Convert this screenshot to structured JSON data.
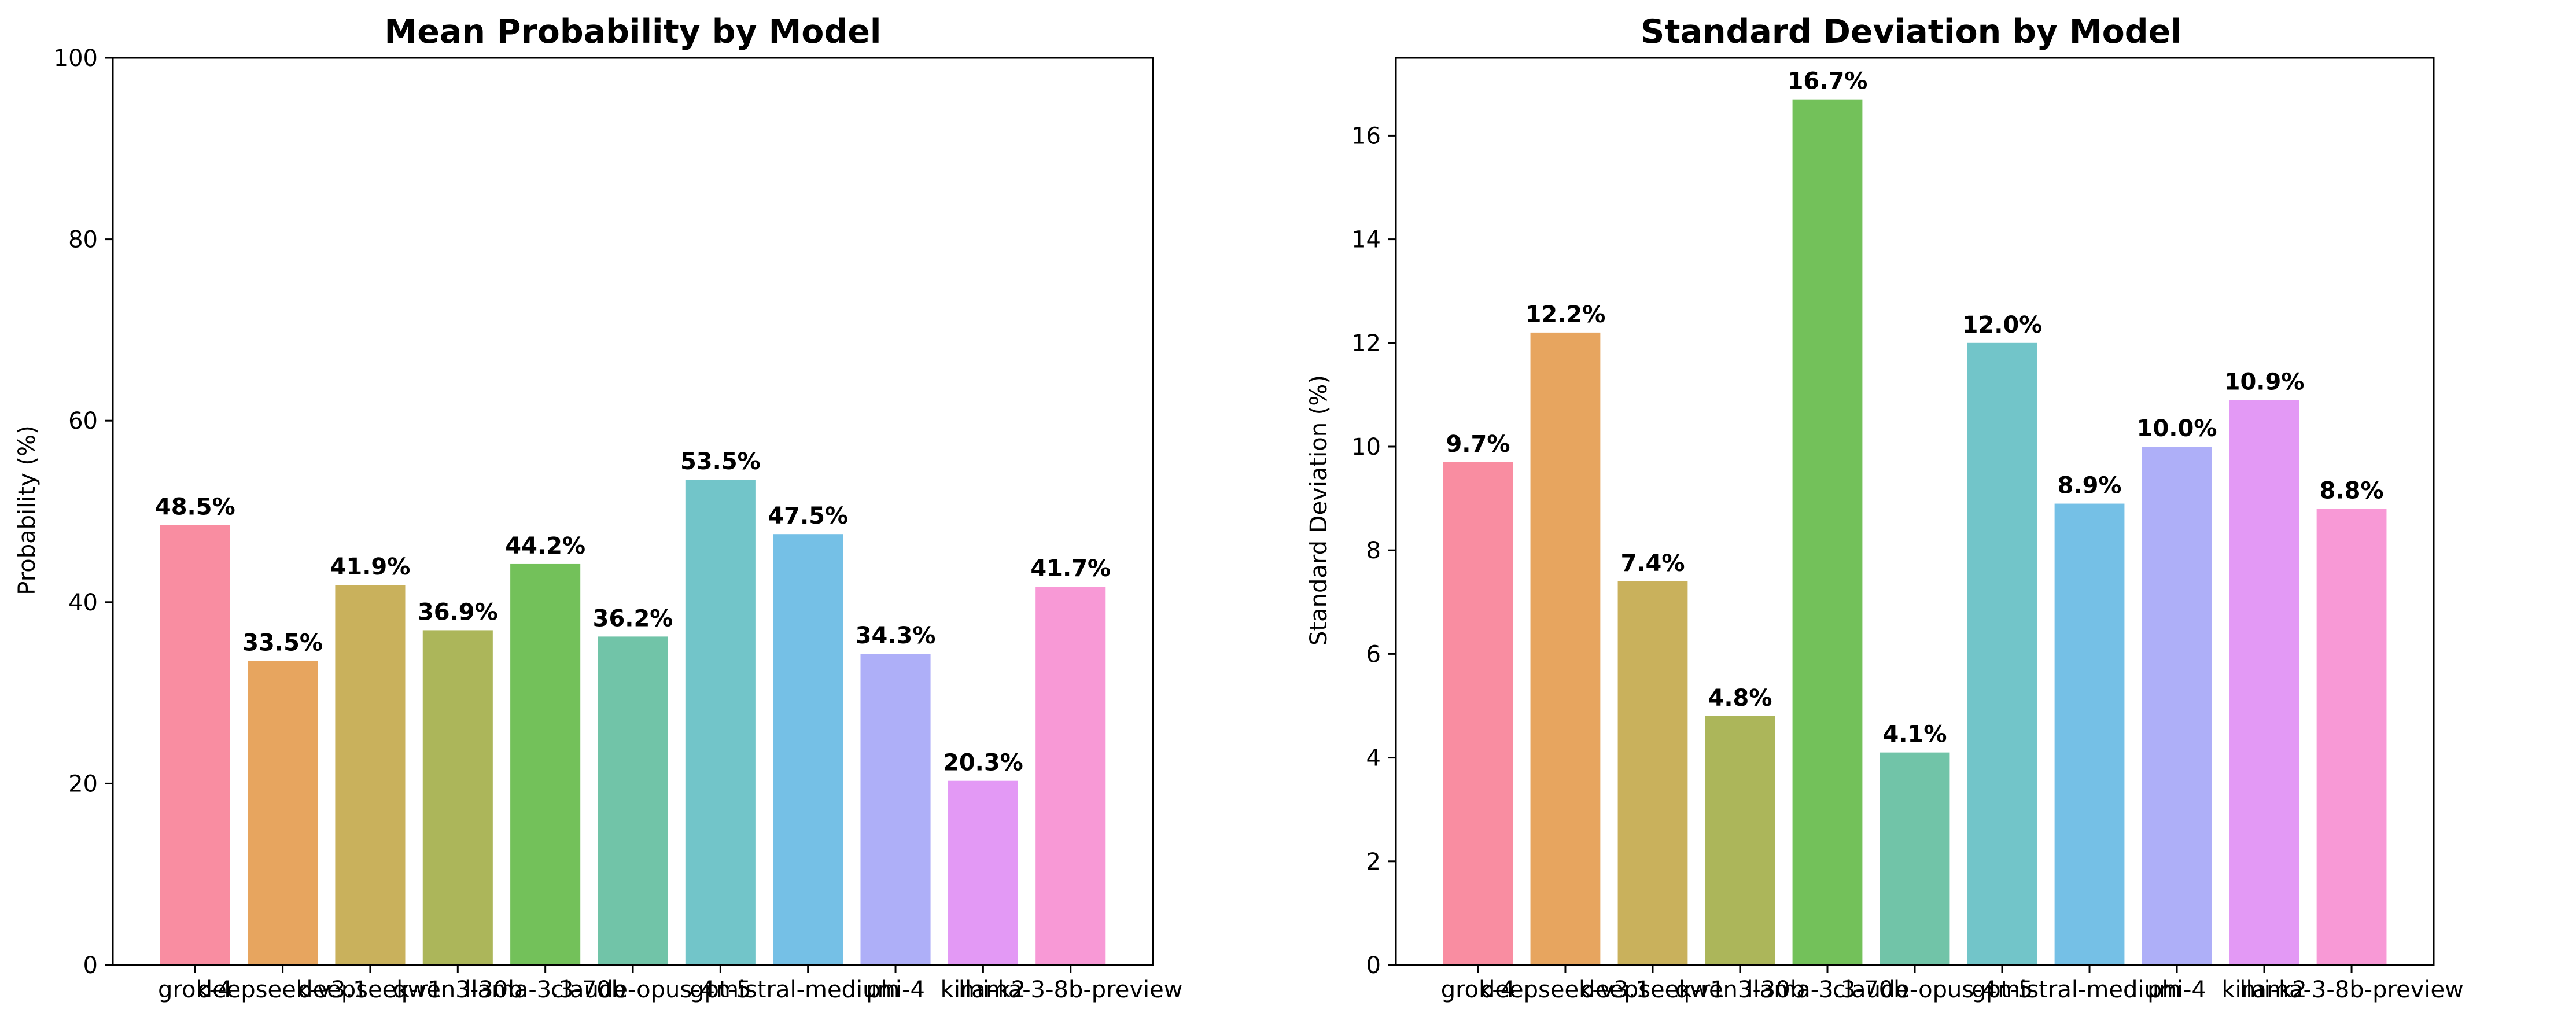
{
  "chart_data": [
    {
      "type": "bar",
      "title": "Mean Probability by Model",
      "xlabel": "",
      "ylabel": "Probability (%)",
      "ylim": [
        0,
        100
      ],
      "yticks": [
        0,
        20,
        40,
        60,
        80,
        100
      ],
      "categories": [
        "grok-4",
        "deepseek-v3.1",
        "deepseek-r1",
        "qwen3-30b",
        "llama-3.3-70b",
        "claude-opus-4",
        "gpt-5",
        "mistral-medium",
        "phi-4",
        "kimi-k2",
        "llama-3-8b-preview"
      ],
      "values": [
        48.5,
        33.5,
        41.9,
        36.9,
        44.2,
        36.2,
        53.5,
        47.5,
        34.3,
        20.3,
        41.7
      ],
      "value_labels": [
        "48.5%",
        "33.5%",
        "41.9%",
        "36.9%",
        "44.2%",
        "36.2%",
        "53.5%",
        "47.5%",
        "34.3%",
        "20.3%",
        "41.7%"
      ],
      "grid": false,
      "legend": "none"
    },
    {
      "type": "bar",
      "title": "Standard Deviation by Model",
      "xlabel": "",
      "ylabel": "Standard Deviation (%)",
      "ylim": [
        0,
        17.5
      ],
      "yticks": [
        0,
        2,
        4,
        6,
        8,
        10,
        12,
        14,
        16
      ],
      "categories": [
        "grok-4",
        "deepseek-v3.1",
        "deepseek-r1",
        "qwen3-30b",
        "llama-3.3-70b",
        "claude-opus-4",
        "gpt-5",
        "mistral-medium",
        "phi-4",
        "kimi-k2",
        "llama-3-8b-preview"
      ],
      "values": [
        9.7,
        12.2,
        7.4,
        4.8,
        16.7,
        4.1,
        12.0,
        8.9,
        10.0,
        10.9,
        8.8
      ],
      "value_labels": [
        "9.7%",
        "12.2%",
        "7.4%",
        "4.8%",
        "16.7%",
        "4.1%",
        "12.0%",
        "8.9%",
        "10.0%",
        "10.9%",
        "8.8%"
      ],
      "grid": false,
      "legend": "none"
    }
  ],
  "colors": {
    "bars": [
      "#f77189",
      "#e18f37",
      "#bb9e33",
      "#97a431",
      "#50b131",
      "#4db592",
      "#4fb6bc",
      "#52b0e0",
      "#9a9bf6",
      "#dc7ff2",
      "#f67fcc"
    ],
    "bar_alpha": 0.8,
    "axes": "#000000",
    "text": "#000000"
  }
}
